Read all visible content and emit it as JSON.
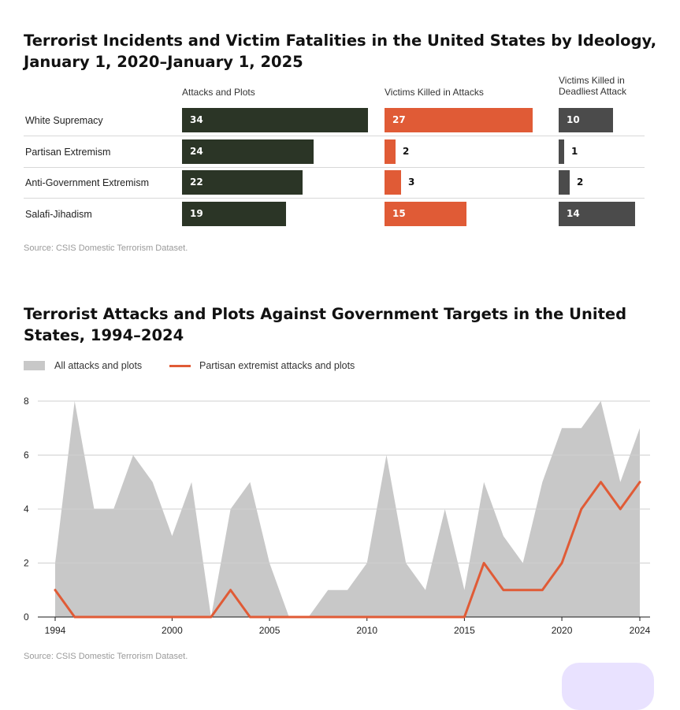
{
  "chart_data": [
    {
      "type": "bar",
      "title": "Terrorist Incidents and Victim Fatalities in the United States by Ideology, January 1, 2020–January 1, 2025",
      "categories": [
        "White Supremacy",
        "Partisan Extremism",
        "Anti-Government Extremism",
        "Salafi-Jihadism"
      ],
      "series": [
        {
          "name": "Attacks and Plots",
          "values": [
            34,
            24,
            22,
            19
          ],
          "color": "#2b3526",
          "max": 34
        },
        {
          "name": "Victims Killed in Attacks",
          "values": [
            27,
            2,
            3,
            15
          ],
          "color": "#e05b36",
          "max": 27
        },
        {
          "name": "Victims Killed in Deadliest Attack",
          "values": [
            10,
            1,
            2,
            14
          ],
          "color": "#4b4b4b",
          "max": 14
        }
      ],
      "source": "Source: CSIS Domestic Terrorism Dataset."
    },
    {
      "type": "area",
      "title": "Terrorist Attacks and Plots Against Government Targets in the United States, 1994–2024",
      "x": [
        1994,
        1995,
        1996,
        1997,
        1998,
        1999,
        2000,
        2001,
        2002,
        2003,
        2004,
        2005,
        2006,
        2007,
        2008,
        2009,
        2010,
        2011,
        2012,
        2013,
        2014,
        2015,
        2016,
        2017,
        2018,
        2019,
        2020,
        2021,
        2022,
        2023,
        2024
      ],
      "series": [
        {
          "name": "All attacks and plots",
          "type": "area",
          "color": "#c8c8c8",
          "values": [
            2,
            8,
            4,
            4,
            6,
            5,
            3,
            5,
            0,
            4,
            5,
            2,
            0,
            0,
            1,
            1,
            2,
            6,
            2,
            1,
            4,
            1,
            5,
            3,
            2,
            5,
            7,
            7,
            8,
            5,
            7
          ]
        },
        {
          "name": "Partisan extremist attacks and plots",
          "type": "line",
          "color": "#e05b36",
          "values": [
            1,
            0,
            0,
            0,
            0,
            0,
            0,
            0,
            0,
            1,
            0,
            0,
            0,
            0,
            0,
            0,
            0,
            0,
            0,
            0,
            0,
            0,
            2,
            1,
            1,
            1,
            2,
            4,
            5,
            4,
            5
          ]
        }
      ],
      "ylim": [
        0,
        8
      ],
      "yticks": [
        0,
        2,
        4,
        6,
        8
      ],
      "xticks": [
        1994,
        2000,
        2005,
        2010,
        2015,
        2020,
        2024
      ],
      "grid": true,
      "legend": "top-left",
      "source": "Source: CSIS Domestic Terrorism Dataset."
    }
  ]
}
